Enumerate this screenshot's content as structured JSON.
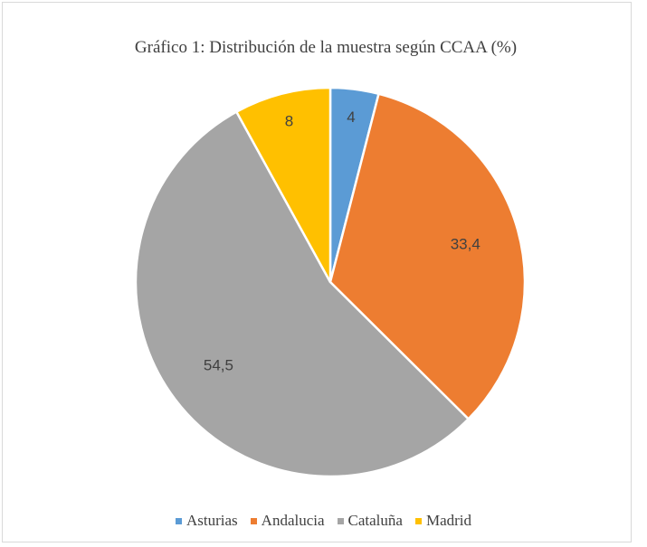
{
  "chart_data": {
    "type": "pie",
    "title": "Gráfico 1: Distribución de la muestra según CCAA (%)",
    "categories": [
      "Asturias",
      "Andalucia",
      "Cataluña",
      "Madrid"
    ],
    "values": [
      4,
      33.4,
      54.5,
      8
    ],
    "value_labels": [
      "4",
      "33,4",
      "54,5",
      "8"
    ],
    "colors": [
      "#5b9bd5",
      "#ed7d31",
      "#a5a5a5",
      "#ffc000"
    ],
    "legend": "bottom"
  }
}
